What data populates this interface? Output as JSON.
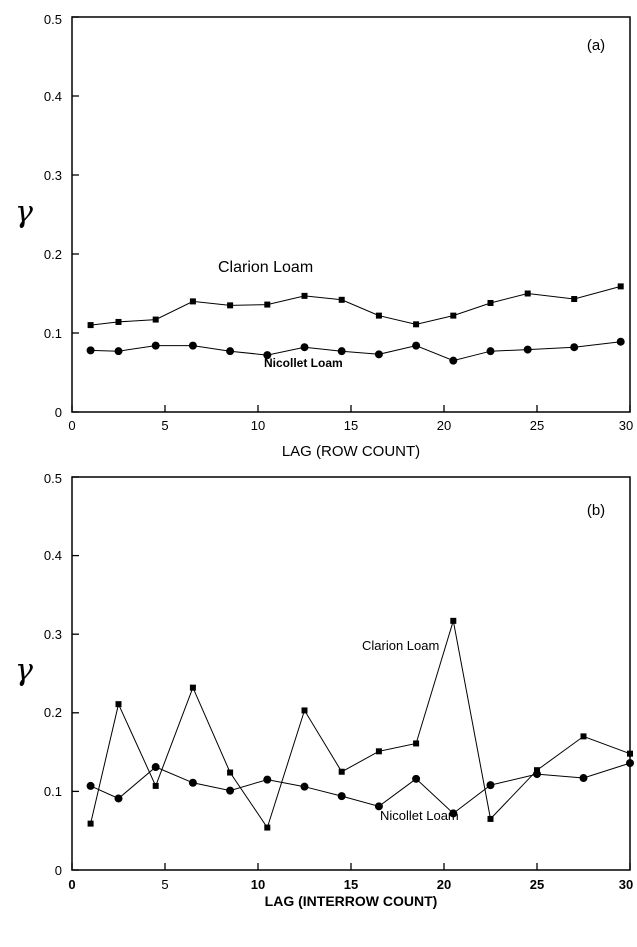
{
  "chart_data": [
    {
      "type": "line",
      "panel_label": "(a)",
      "xlabel": "LAG (ROW COUNT)",
      "ylabel": "γ",
      "xlim": [
        0,
        30
      ],
      "ylim": [
        0,
        0.5
      ],
      "xticks": [
        "0",
        "5",
        "10",
        "15",
        "20",
        "25",
        "30"
      ],
      "yticks": [
        "0",
        "0.1",
        "0.2",
        "0.3",
        "0.4",
        "0.5"
      ],
      "grid": false,
      "series": [
        {
          "name": "Clarion Loam",
          "marker": "square",
          "x": [
            1,
            2.5,
            4.5,
            6.5,
            8.5,
            10.5,
            12.5,
            14.5,
            16.5,
            18.5,
            20.5,
            22.5,
            24.5,
            27,
            29.5
          ],
          "y": [
            0.11,
            0.114,
            0.117,
            0.14,
            0.135,
            0.136,
            0.147,
            0.142,
            0.122,
            0.111,
            0.122,
            0.138,
            0.15,
            0.143,
            0.159
          ]
        },
        {
          "name": "Nicollet Loam",
          "marker": "circle",
          "x": [
            1,
            2.5,
            4.5,
            6.5,
            8.5,
            10.5,
            12.5,
            14.5,
            16.5,
            18.5,
            20.5,
            22.5,
            24.5,
            27,
            29.5
          ],
          "y": [
            0.078,
            0.077,
            0.084,
            0.084,
            0.077,
            0.072,
            0.082,
            0.077,
            0.073,
            0.084,
            0.065,
            0.077,
            0.079,
            0.082,
            0.089
          ]
        }
      ]
    },
    {
      "type": "line",
      "panel_label": "(b)",
      "xlabel": "LAG (INTERROW COUNT)",
      "ylabel": "γ",
      "xlim": [
        0,
        30
      ],
      "ylim": [
        0,
        0.5
      ],
      "xticks": [
        "0",
        "5",
        "10",
        "15",
        "20",
        "25",
        "30"
      ],
      "yticks": [
        "0",
        "0.1",
        "0.2",
        "0.3",
        "0.4",
        "0.5"
      ],
      "grid": false,
      "series": [
        {
          "name": "Clarion Loam",
          "marker": "square",
          "x": [
            1,
            2.5,
            4.5,
            6.5,
            8.5,
            10.5,
            12.5,
            14.5,
            16.5,
            18.5,
            20.5,
            22.5,
            25,
            27.5,
            30
          ],
          "y": [
            0.059,
            0.211,
            0.107,
            0.232,
            0.124,
            0.054,
            0.203,
            0.125,
            0.151,
            0.161,
            0.317,
            0.065,
            0.127,
            0.17,
            0.148
          ]
        },
        {
          "name": "Nicollet Loam",
          "marker": "circle",
          "x": [
            1,
            2.5,
            4.5,
            6.5,
            8.5,
            10.5,
            12.5,
            14.5,
            16.5,
            18.5,
            20.5,
            22.5,
            25,
            27.5,
            30
          ],
          "y": [
            0.107,
            0.091,
            0.131,
            0.111,
            0.101,
            0.115,
            0.106,
            0.094,
            0.081,
            0.116,
            0.072,
            0.108,
            0.122,
            0.117,
            0.136
          ]
        }
      ]
    }
  ]
}
